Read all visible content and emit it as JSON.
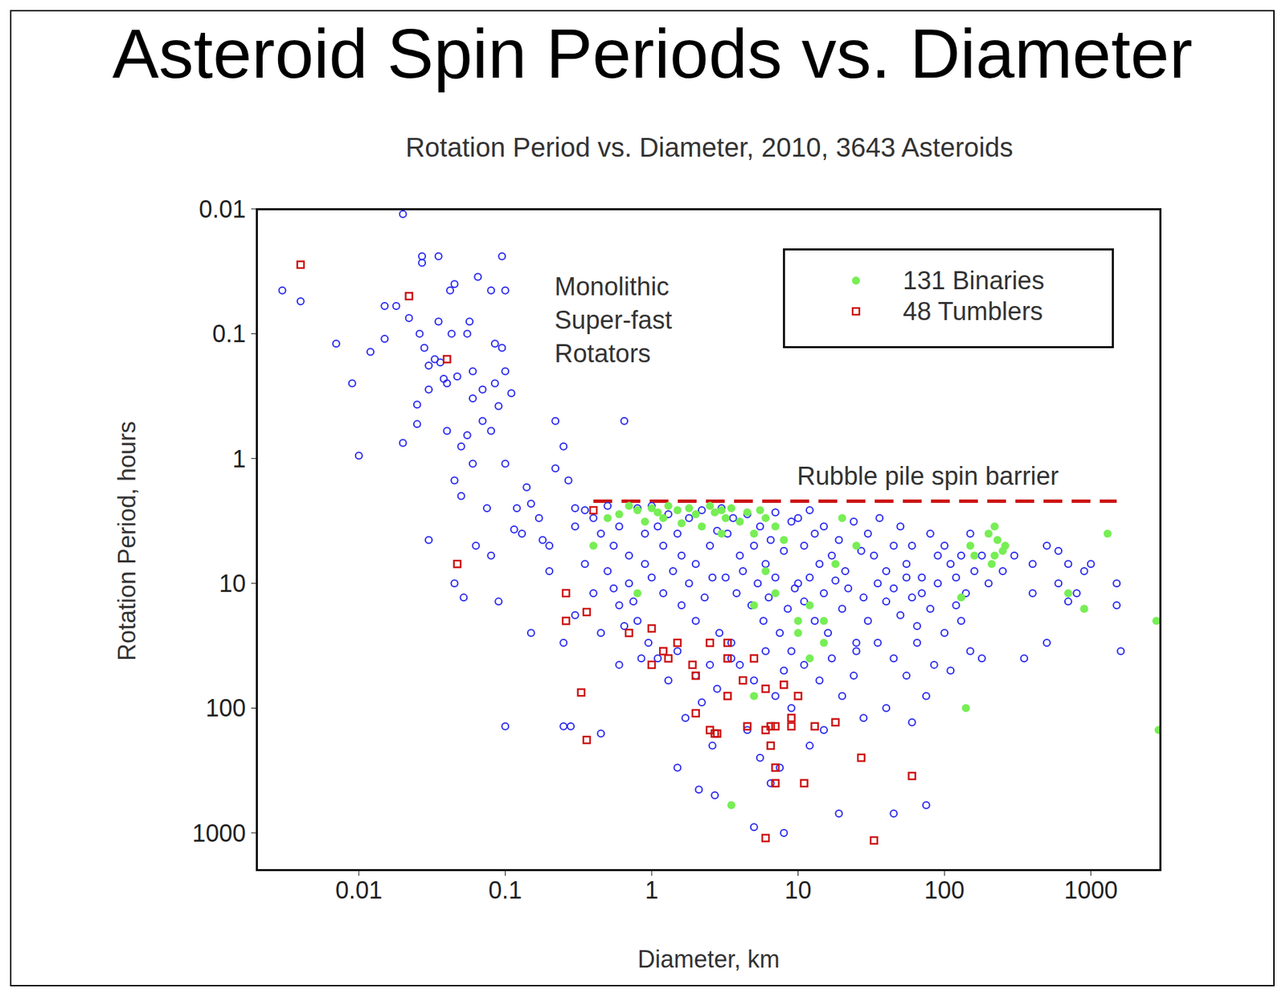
{
  "chart_data": {
    "type": "scatter",
    "title": "Asteroid Spin Periods vs. Diameter",
    "subtitle": "Rotation Period vs. Diameter, 2010, 3643 Asteroids",
    "x_label": "Diameter, km",
    "y_label": "Rotation Period, hours",
    "log": true,
    "grid": false,
    "legend": "upper right",
    "xlim": [
      0.002,
      3000
    ],
    "xticks": [
      0.01,
      0.1,
      1,
      10,
      100,
      1000
    ],
    "ylim": [
      0.01,
      2000
    ],
    "yticks": [
      0.01,
      0.1,
      1,
      10,
      100,
      1000
    ],
    "annotations": {
      "monolithic": "Monolithic\nSuper-fast\nRotators"
    },
    "spin_barrier": {
      "label": "Rubble pile spin barrier",
      "period": 2.2,
      "x": [
        0.4,
        1500
      ],
      "color": "#cc1111",
      "line_style": "dashed"
    },
    "series": [
      {
        "color": "#2a2aee",
        "marker": "circle_open",
        "x": [
          0.003,
          0.004,
          0.007,
          0.009,
          0.01,
          0.012,
          0.015,
          0.015,
          0.018,
          0.02,
          0.02,
          0.022,
          0.025,
          0.025,
          0.026,
          0.027,
          0.027,
          0.028,
          0.03,
          0.03,
          0.03,
          0.033,
          0.035,
          0.035,
          0.036,
          0.038,
          0.04,
          0.04,
          0.042,
          0.043,
          0.045,
          0.045,
          0.045,
          0.047,
          0.05,
          0.05,
          0.052,
          0.055,
          0.055,
          0.057,
          0.06,
          0.06,
          0.06,
          0.063,
          0.065,
          0.07,
          0.07,
          0.075,
          0.08,
          0.08,
          0.085,
          0.085,
          0.09,
          0.09,
          0.095,
          0.095,
          0.1,
          0.1,
          0.1,
          0.11,
          0.115,
          0.14,
          0.15,
          0.17,
          0.18,
          0.2,
          0.22,
          0.22,
          0.25,
          0.27,
          0.3,
          0.3,
          0.65,
          0.1,
          0.25,
          0.28,
          0.45,
          0.08,
          0.12,
          0.13,
          0.2,
          0.15,
          0.25,
          0.35,
          0.4,
          0.45,
          0.5,
          0.55,
          0.6,
          0.7,
          0.8,
          0.9,
          0.35,
          0.4,
          0.5,
          0.6,
          0.7,
          0.8,
          0.9,
          0.3,
          0.45,
          0.55,
          0.65,
          0.75,
          0.95,
          0.85,
          0.6,
          1,
          1.1,
          1.2,
          1.3,
          1.5,
          1.6,
          1.8,
          2,
          2.2,
          2.5,
          2.8,
          1,
          1.2,
          1.4,
          1.6,
          1.8,
          2,
          2.3,
          2.6,
          2.9,
          1.1,
          1.5,
          2,
          2.5,
          2.8,
          1.3,
          1.7,
          2.2,
          2.6,
          1.5,
          2.1,
          2.7,
          3,
          3.3,
          3.6,
          4,
          4.5,
          5,
          5.5,
          6,
          6.5,
          7,
          8,
          9,
          3.2,
          3.8,
          4.2,
          4.8,
          5.3,
          5.8,
          6.3,
          7,
          7.5,
          8.5,
          9.5,
          3.5,
          4,
          5,
          6,
          7,
          8,
          9,
          4.5,
          5.5,
          6.5,
          7.5,
          5,
          8,
          3.5,
          9,
          10,
          11,
          12,
          13,
          14,
          15,
          17,
          19,
          21,
          24,
          27,
          10,
          11,
          12,
          13,
          15,
          16,
          18,
          20,
          22,
          25,
          28,
          11,
          14,
          17,
          20,
          24,
          28,
          15,
          19,
          12,
          25,
          30,
          30,
          33,
          36,
          40,
          45,
          50,
          55,
          60,
          70,
          80,
          90,
          35,
          40,
          45,
          50,
          55,
          60,
          65,
          70,
          80,
          90,
          35,
          45,
          55,
          65,
          75,
          85,
          40,
          60,
          45,
          100,
          110,
          75,
          100,
          110,
          120,
          130,
          140,
          150,
          160,
          180,
          200,
          120,
          130,
          150,
          180,
          250,
          300,
          400,
          500,
          600,
          700,
          800,
          900,
          400,
          600,
          1500,
          1500,
          1600,
          350,
          500,
          1000,
          700
        ],
        "values": [
          0.045,
          0.055,
          0.12,
          0.25,
          0.95,
          0.14,
          0.06,
          0.11,
          0.06,
          0.011,
          0.75,
          0.075,
          0.37,
          0.53,
          0.1,
          0.024,
          0.027,
          0.13,
          0.18,
          0.28,
          4.5,
          0.16,
          0.024,
          0.08,
          0.17,
          0.23,
          0.6,
          0.25,
          0.045,
          0.1,
          1.5,
          10,
          0.04,
          0.22,
          0.8,
          2,
          13,
          0.1,
          0.65,
          0.08,
          0.2,
          0.33,
          1.1,
          5,
          0.035,
          0.5,
          0.28,
          2.5,
          0.045,
          0.6,
          0.25,
          0.12,
          0.38,
          14,
          0.13,
          0.024,
          0.045,
          0.2,
          1.1,
          0.3,
          3.7,
          1.7,
          2.3,
          3,
          4.5,
          5,
          1.2,
          0.5,
          0.8,
          1.5,
          2.5,
          3.5,
          0.5,
          140,
          140,
          140,
          160,
          6,
          2.5,
          4,
          8,
          25,
          30,
          2.6,
          3,
          4,
          2.4,
          5,
          3.5,
          6,
          2.5,
          4,
          7,
          12,
          8,
          15,
          10,
          20,
          7,
          18,
          25,
          11,
          22,
          14,
          30,
          40,
          45,
          2.4,
          3.5,
          5,
          2.8,
          4,
          6,
          3,
          7,
          2.6,
          5,
          3.8,
          9,
          12,
          8,
          15,
          10,
          20,
          13,
          9,
          25,
          40,
          35,
          55,
          45,
          70,
          60,
          120,
          90,
          200,
          300,
          450,
          500,
          2.5,
          4,
          3,
          6,
          2.8,
          5,
          3.5,
          7,
          4.5,
          2.7,
          5.5,
          3.2,
          9,
          12,
          8,
          15,
          10,
          20,
          13,
          9,
          25,
          16,
          11,
          30,
          45,
          60,
          35,
          80,
          50,
          100,
          150,
          250,
          400,
          300,
          900,
          1000,
          40,
          35,
          3,
          5,
          2.6,
          4,
          7,
          3.5,
          6,
          4.5,
          8,
          3.2,
          5.5,
          10,
          14,
          9,
          20,
          12,
          25,
          9.5,
          16,
          11,
          30,
          13,
          45,
          60,
          40,
          80,
          55,
          120,
          150,
          700,
          200,
          35,
          20,
          4,
          6,
          3,
          8,
          5,
          3.5,
          7,
          5,
          9,
          4,
          6,
          10,
          14,
          11,
          18,
          9,
          13,
          22,
          12,
          16,
          10,
          30,
          40,
          55,
          30,
          80,
          45,
          100,
          130,
          700,
          25,
          50,
          600,
          5,
          7,
          9,
          6,
          12,
          4,
          8,
          6,
          10,
          15,
          20,
          35,
          40,
          8,
          6,
          7,
          5,
          10,
          7,
          12,
          8,
          12,
          5.5,
          10,
          15,
          35,
          40,
          30,
          7,
          14
        ]
      },
      {
        "name": "131 Binaries",
        "color": "#77ee55",
        "marker": "circle",
        "x": [
          0.5,
          0.6,
          0.7,
          0.8,
          0.9,
          1,
          1.1,
          1.2,
          1.3,
          1.5,
          1.6,
          1.8,
          2,
          2.2,
          2.5,
          2.7,
          3,
          3.2,
          3.5,
          4,
          4.5,
          5,
          5.5,
          6,
          7,
          8,
          3,
          0.4,
          0.8,
          5,
          6,
          7,
          10,
          12,
          15,
          18,
          20,
          25,
          10,
          15,
          130,
          150,
          160,
          200,
          210,
          220,
          250,
          220,
          230,
          260,
          700,
          900,
          1300,
          2800,
          2900,
          140,
          3.5,
          5,
          12
        ],
        "values": [
          3,
          2.8,
          2.4,
          2.6,
          3.2,
          2.5,
          2.7,
          3,
          2.4,
          2.6,
          3.3,
          2.5,
          2.8,
          3.5,
          2.4,
          2.7,
          2.6,
          3,
          2.5,
          3.2,
          2.7,
          4,
          2.6,
          3,
          3.5,
          4.5,
          4,
          5,
          12,
          15,
          8,
          12,
          20,
          15,
          20,
          7,
          3,
          5,
          25,
          30,
          13,
          5,
          6,
          4,
          7,
          6,
          5.5,
          3.5,
          4.5,
          5,
          12,
          16,
          4,
          20,
          150,
          100,
          600,
          80,
          40
        ]
      },
      {
        "name": "48 Tumblers",
        "color": "#cc1111",
        "marker": "square_open",
        "x": [
          0.004,
          0.022,
          0.04,
          0.047,
          0.26,
          0.26,
          0.33,
          0.36,
          0.4,
          0.36,
          0.7,
          1,
          1,
          1.2,
          1.3,
          1.5,
          1.9,
          2,
          2,
          2.5,
          2.5,
          2.7,
          2.8,
          3.3,
          3.3,
          3.3,
          4.2,
          4.5,
          5,
          6,
          6,
          6.5,
          6.5,
          7,
          7,
          7,
          8,
          9,
          9,
          10,
          11,
          13,
          18,
          27,
          33,
          60,
          6
        ],
        "values": [
          0.028,
          0.05,
          0.16,
          7,
          12,
          20,
          75,
          17,
          2.6,
          180,
          25,
          23,
          45,
          35,
          40,
          30,
          45,
          55,
          110,
          30,
          150,
          160,
          160,
          30,
          40,
          80,
          60,
          140,
          40,
          70,
          150,
          140,
          200,
          140,
          300,
          400,
          65,
          120,
          140,
          80,
          400,
          140,
          130,
          250,
          1150,
          350,
          1100
        ]
      }
    ]
  }
}
